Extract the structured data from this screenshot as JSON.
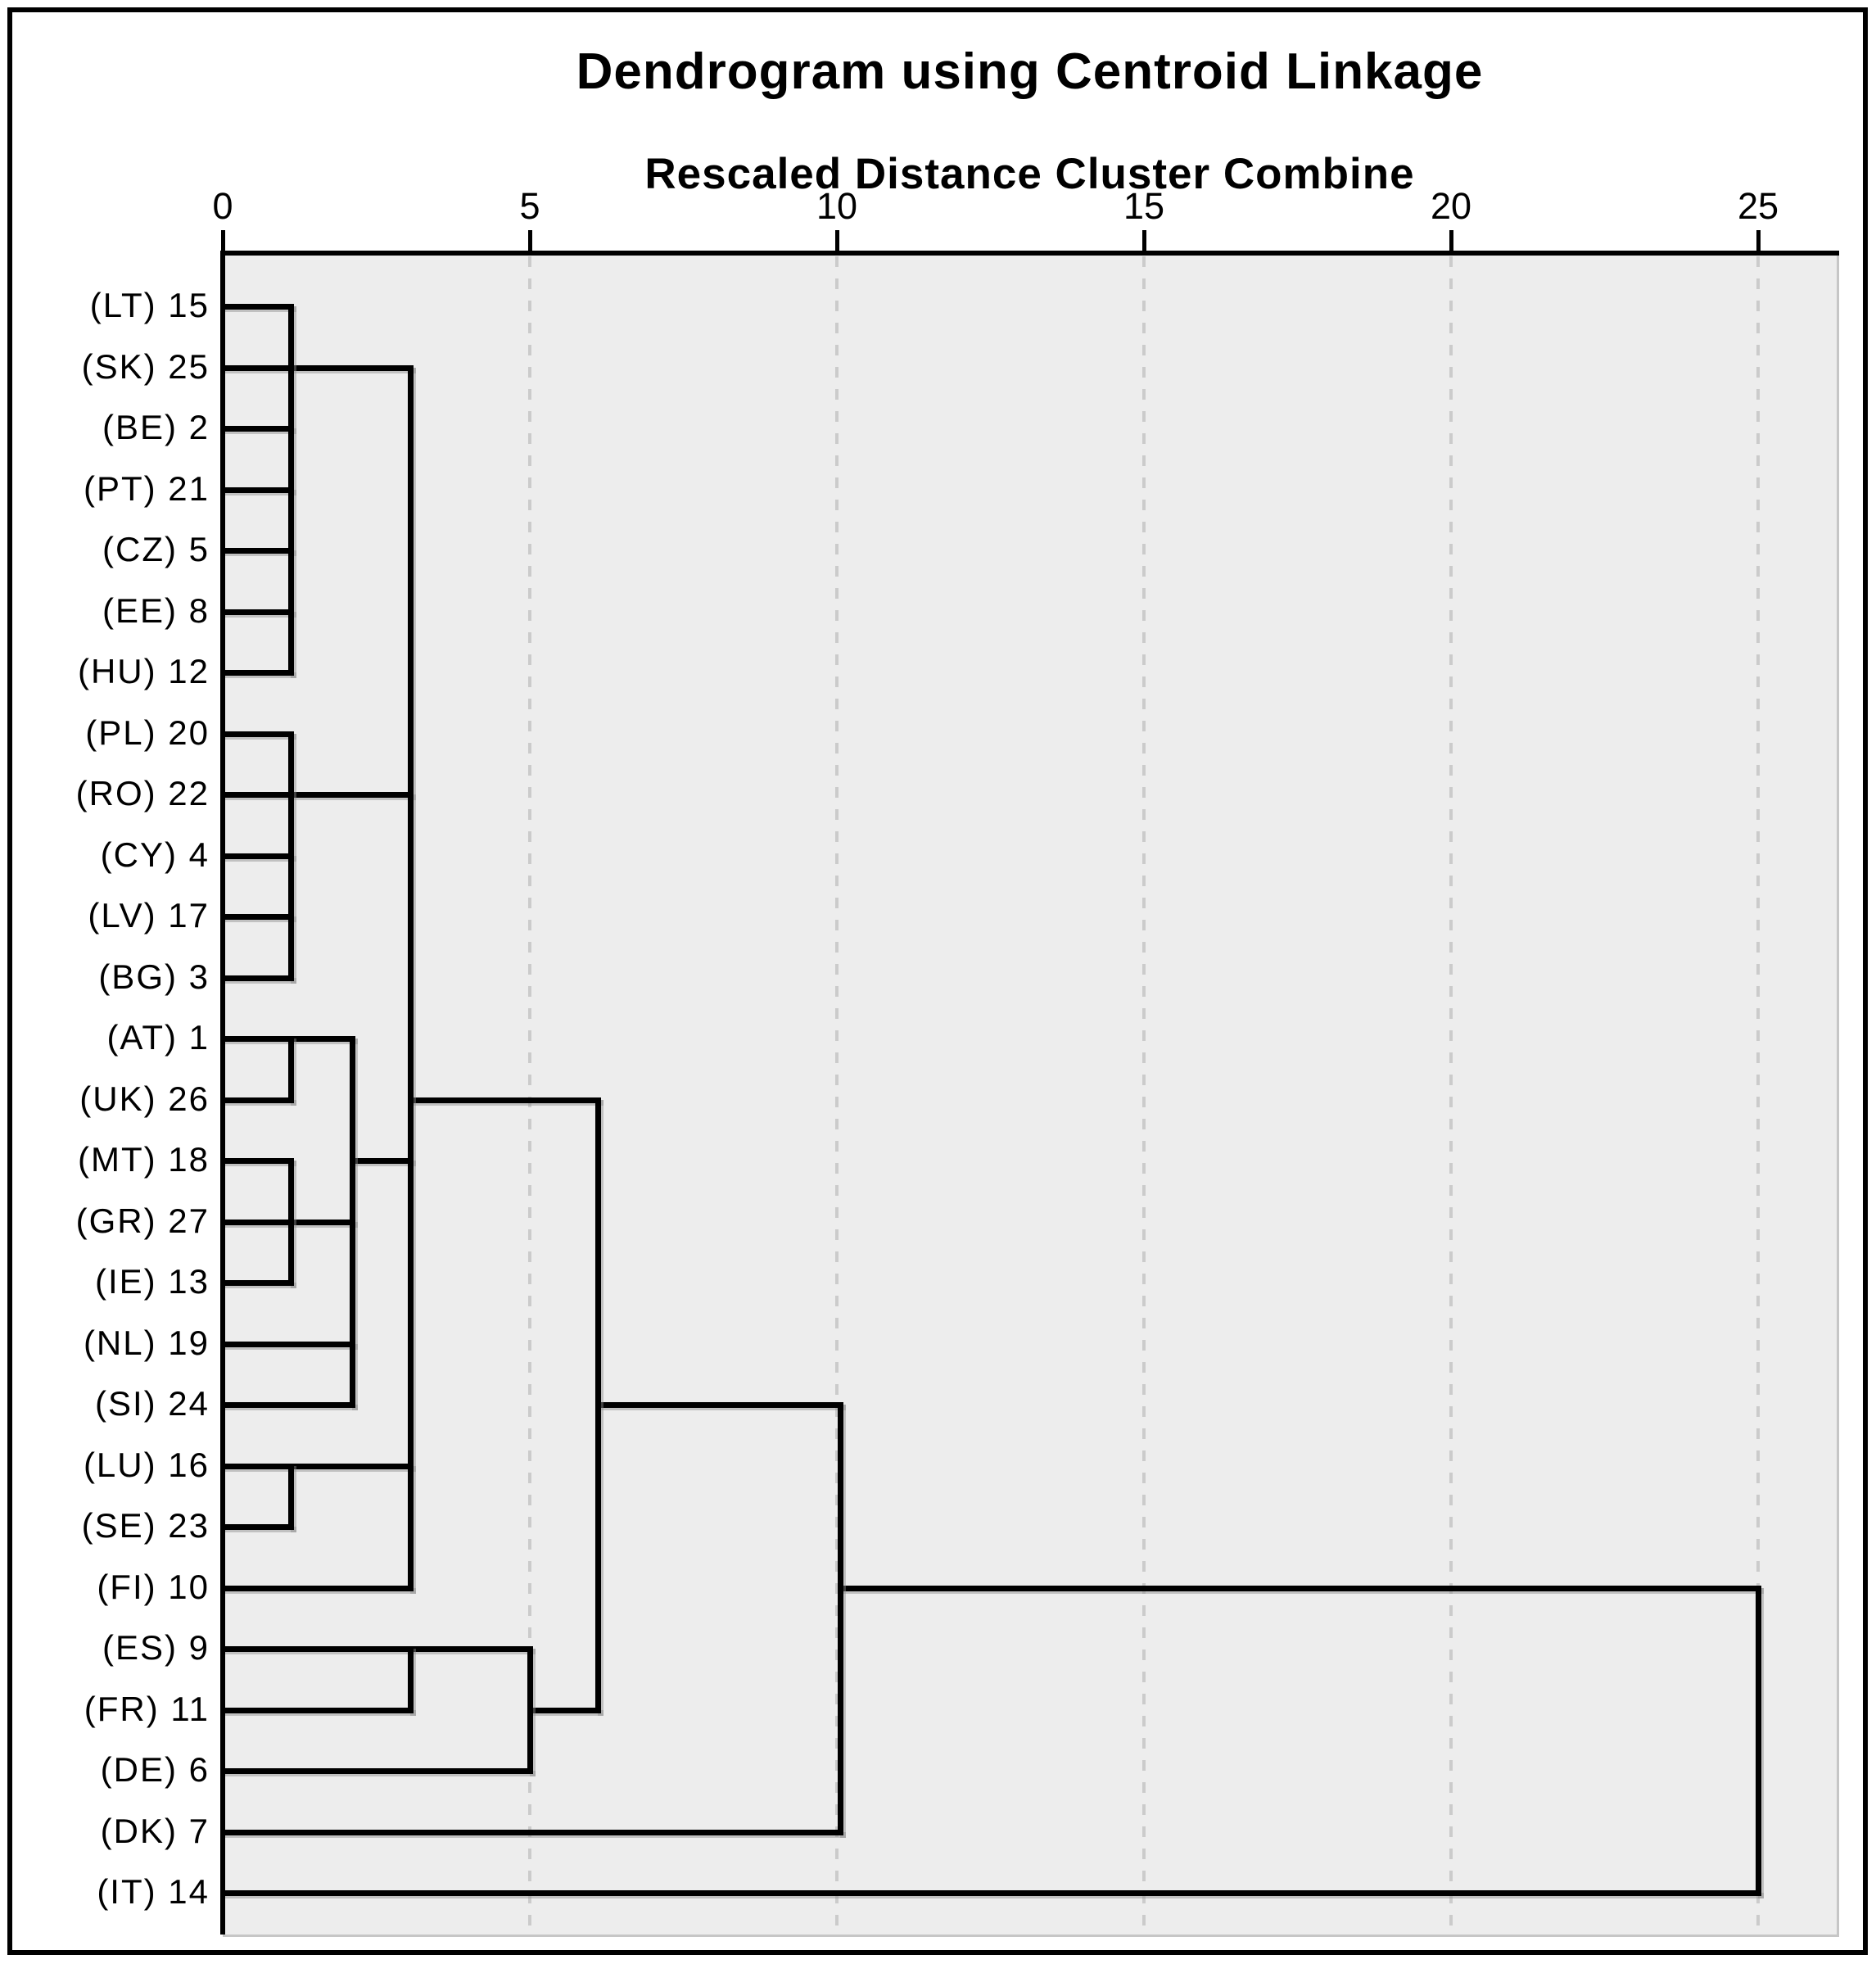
{
  "chart_data": {
    "type": "dendrogram",
    "title": "Dendrogram using Centroid Linkage",
    "subtitle": "Rescaled Distance Cluster Combine",
    "orientation": "horizontal",
    "legend_position": "none",
    "grid": "dashed-vertical",
    "axis": {
      "range": [
        0,
        25
      ],
      "ticks": [
        "0",
        "5",
        "10",
        "15",
        "20",
        "25"
      ],
      "tick_values": [
        0,
        5,
        10,
        15,
        20,
        25
      ],
      "gridline_values": [
        5,
        10,
        15,
        20,
        25
      ]
    },
    "leaves": [
      {
        "label": "(LT) 15",
        "country": "LT",
        "case": 15
      },
      {
        "label": "(SK) 25",
        "country": "SK",
        "case": 25
      },
      {
        "label": "(BE) 2",
        "country": "BE",
        "case": 2
      },
      {
        "label": "(PT) 21",
        "country": "PT",
        "case": 21
      },
      {
        "label": "(CZ) 5",
        "country": "CZ",
        "case": 5
      },
      {
        "label": "(EE) 8",
        "country": "EE",
        "case": 8
      },
      {
        "label": "(HU) 12",
        "country": "HU",
        "case": 12
      },
      {
        "label": "(PL) 20",
        "country": "PL",
        "case": 20
      },
      {
        "label": "(RO) 22",
        "country": "RO",
        "case": 22
      },
      {
        "label": "(CY) 4",
        "country": "CY",
        "case": 4
      },
      {
        "label": "(LV) 17",
        "country": "LV",
        "case": 17
      },
      {
        "label": "(BG) 3",
        "country": "BG",
        "case": 3
      },
      {
        "label": "(AT) 1",
        "country": "AT",
        "case": 1
      },
      {
        "label": "(UK) 26",
        "country": "UK",
        "case": 26
      },
      {
        "label": "(MT) 18",
        "country": "MT",
        "case": 18
      },
      {
        "label": "(GR) 27",
        "country": "GR",
        "case": 27
      },
      {
        "label": "(IE) 13",
        "country": "IE",
        "case": 13
      },
      {
        "label": "(NL) 19",
        "country": "NL",
        "case": 19
      },
      {
        "label": "(SI) 24",
        "country": "SI",
        "case": 24
      },
      {
        "label": "(LU) 16",
        "country": "LU",
        "case": 16
      },
      {
        "label": "(SE) 23",
        "country": "SE",
        "case": 23
      },
      {
        "label": "(FI) 10",
        "country": "FI",
        "case": 10
      },
      {
        "label": "(ES) 9",
        "country": "ES",
        "case": 9
      },
      {
        "label": "(FR) 11",
        "country": "FR",
        "case": 11
      },
      {
        "label": "(DE) 6",
        "country": "DE",
        "case": 6
      },
      {
        "label": "(DK) 7",
        "country": "DK",
        "case": 7
      },
      {
        "label": "(IT) 14",
        "country": "IT",
        "case": 14
      }
    ],
    "merges": [
      {
        "distance": 1.1,
        "members": [
          "(LT) 15",
          "(SK) 25",
          "(BE) 2",
          "(PT) 21",
          "(CZ) 5",
          "(EE) 8",
          "(HU) 12"
        ]
      },
      {
        "distance": 1.1,
        "members": [
          "(PL) 20",
          "(RO) 22",
          "(CY) 4",
          "(LV) 17",
          "(BG) 3"
        ]
      },
      {
        "distance": 1.1,
        "members": [
          "(AT) 1",
          "(UK) 26"
        ]
      },
      {
        "distance": 1.1,
        "members": [
          "(MT) 18",
          "(GR) 27",
          "(IE) 13"
        ]
      },
      {
        "distance": 1.1,
        "members": [
          "(LU) 16",
          "(SE) 23"
        ]
      },
      {
        "distance": 2.1,
        "members": [
          "cluster[AT,UK]",
          "cluster[MT,GR,IE]",
          "(NL) 19",
          "(SI) 24"
        ]
      },
      {
        "distance": 3.05,
        "members": [
          "cluster[LT..HU]",
          "cluster[PL..BG]",
          "cluster[AT..SI]",
          "cluster[LU,SE]",
          "(FI) 10"
        ]
      },
      {
        "distance": 3.05,
        "members": [
          "(ES) 9",
          "(FR) 11"
        ]
      },
      {
        "distance": 5.0,
        "members": [
          "cluster[ES,FR]",
          "(DE) 6"
        ]
      },
      {
        "distance": 6.1,
        "members": [
          "cluster[LT..FI]",
          "cluster[ES,FR,DE]"
        ]
      },
      {
        "distance": 10.05,
        "members": [
          "cluster[LT..DE]",
          "(DK) 7"
        ]
      },
      {
        "distance": 25.0,
        "members": [
          "cluster[LT..DK]",
          "(IT) 14"
        ]
      }
    ],
    "segments": {
      "horizontal": [
        [
          0,
          0,
          1.1
        ],
        [
          1,
          0,
          3.05
        ],
        [
          2,
          0,
          1.1
        ],
        [
          3,
          0,
          1.1
        ],
        [
          4,
          0,
          1.1
        ],
        [
          5,
          0,
          1.1
        ],
        [
          6,
          0,
          1.1
        ],
        [
          7,
          0,
          1.1
        ],
        [
          8,
          0,
          3.05
        ],
        [
          9,
          0,
          1.1
        ],
        [
          10,
          0,
          1.1
        ],
        [
          11,
          0,
          1.1
        ],
        [
          12,
          0,
          2.1
        ],
        [
          13,
          0,
          1.1
        ],
        [
          13,
          3.05,
          6.1
        ],
        [
          14,
          0,
          1.1
        ],
        [
          14,
          2.1,
          3.05
        ],
        [
          15,
          0,
          2.1
        ],
        [
          16,
          0,
          1.1
        ],
        [
          17,
          0,
          2.1
        ],
        [
          18,
          0,
          2.1
        ],
        [
          18,
          6.1,
          10.05
        ],
        [
          19,
          0,
          3.05
        ],
        [
          20,
          0,
          1.1
        ],
        [
          21,
          0,
          3.05
        ],
        [
          21,
          10.05,
          25
        ],
        [
          22,
          0,
          5.0
        ],
        [
          23,
          0,
          3.05
        ],
        [
          23,
          5.0,
          6.1
        ],
        [
          24,
          0,
          5.0
        ],
        [
          25,
          0,
          10.05
        ],
        [
          26,
          0,
          25
        ]
      ],
      "vertical": [
        [
          1.1,
          0,
          6
        ],
        [
          1.1,
          7,
          11
        ],
        [
          1.1,
          12,
          13
        ],
        [
          1.1,
          14,
          16
        ],
        [
          1.1,
          19,
          20
        ],
        [
          2.1,
          12,
          18
        ],
        [
          3.05,
          1,
          21
        ],
        [
          3.05,
          22,
          23
        ],
        [
          5.0,
          22,
          24
        ],
        [
          6.1,
          13,
          23
        ],
        [
          10.05,
          18,
          25
        ],
        [
          25,
          21,
          26
        ]
      ]
    }
  }
}
